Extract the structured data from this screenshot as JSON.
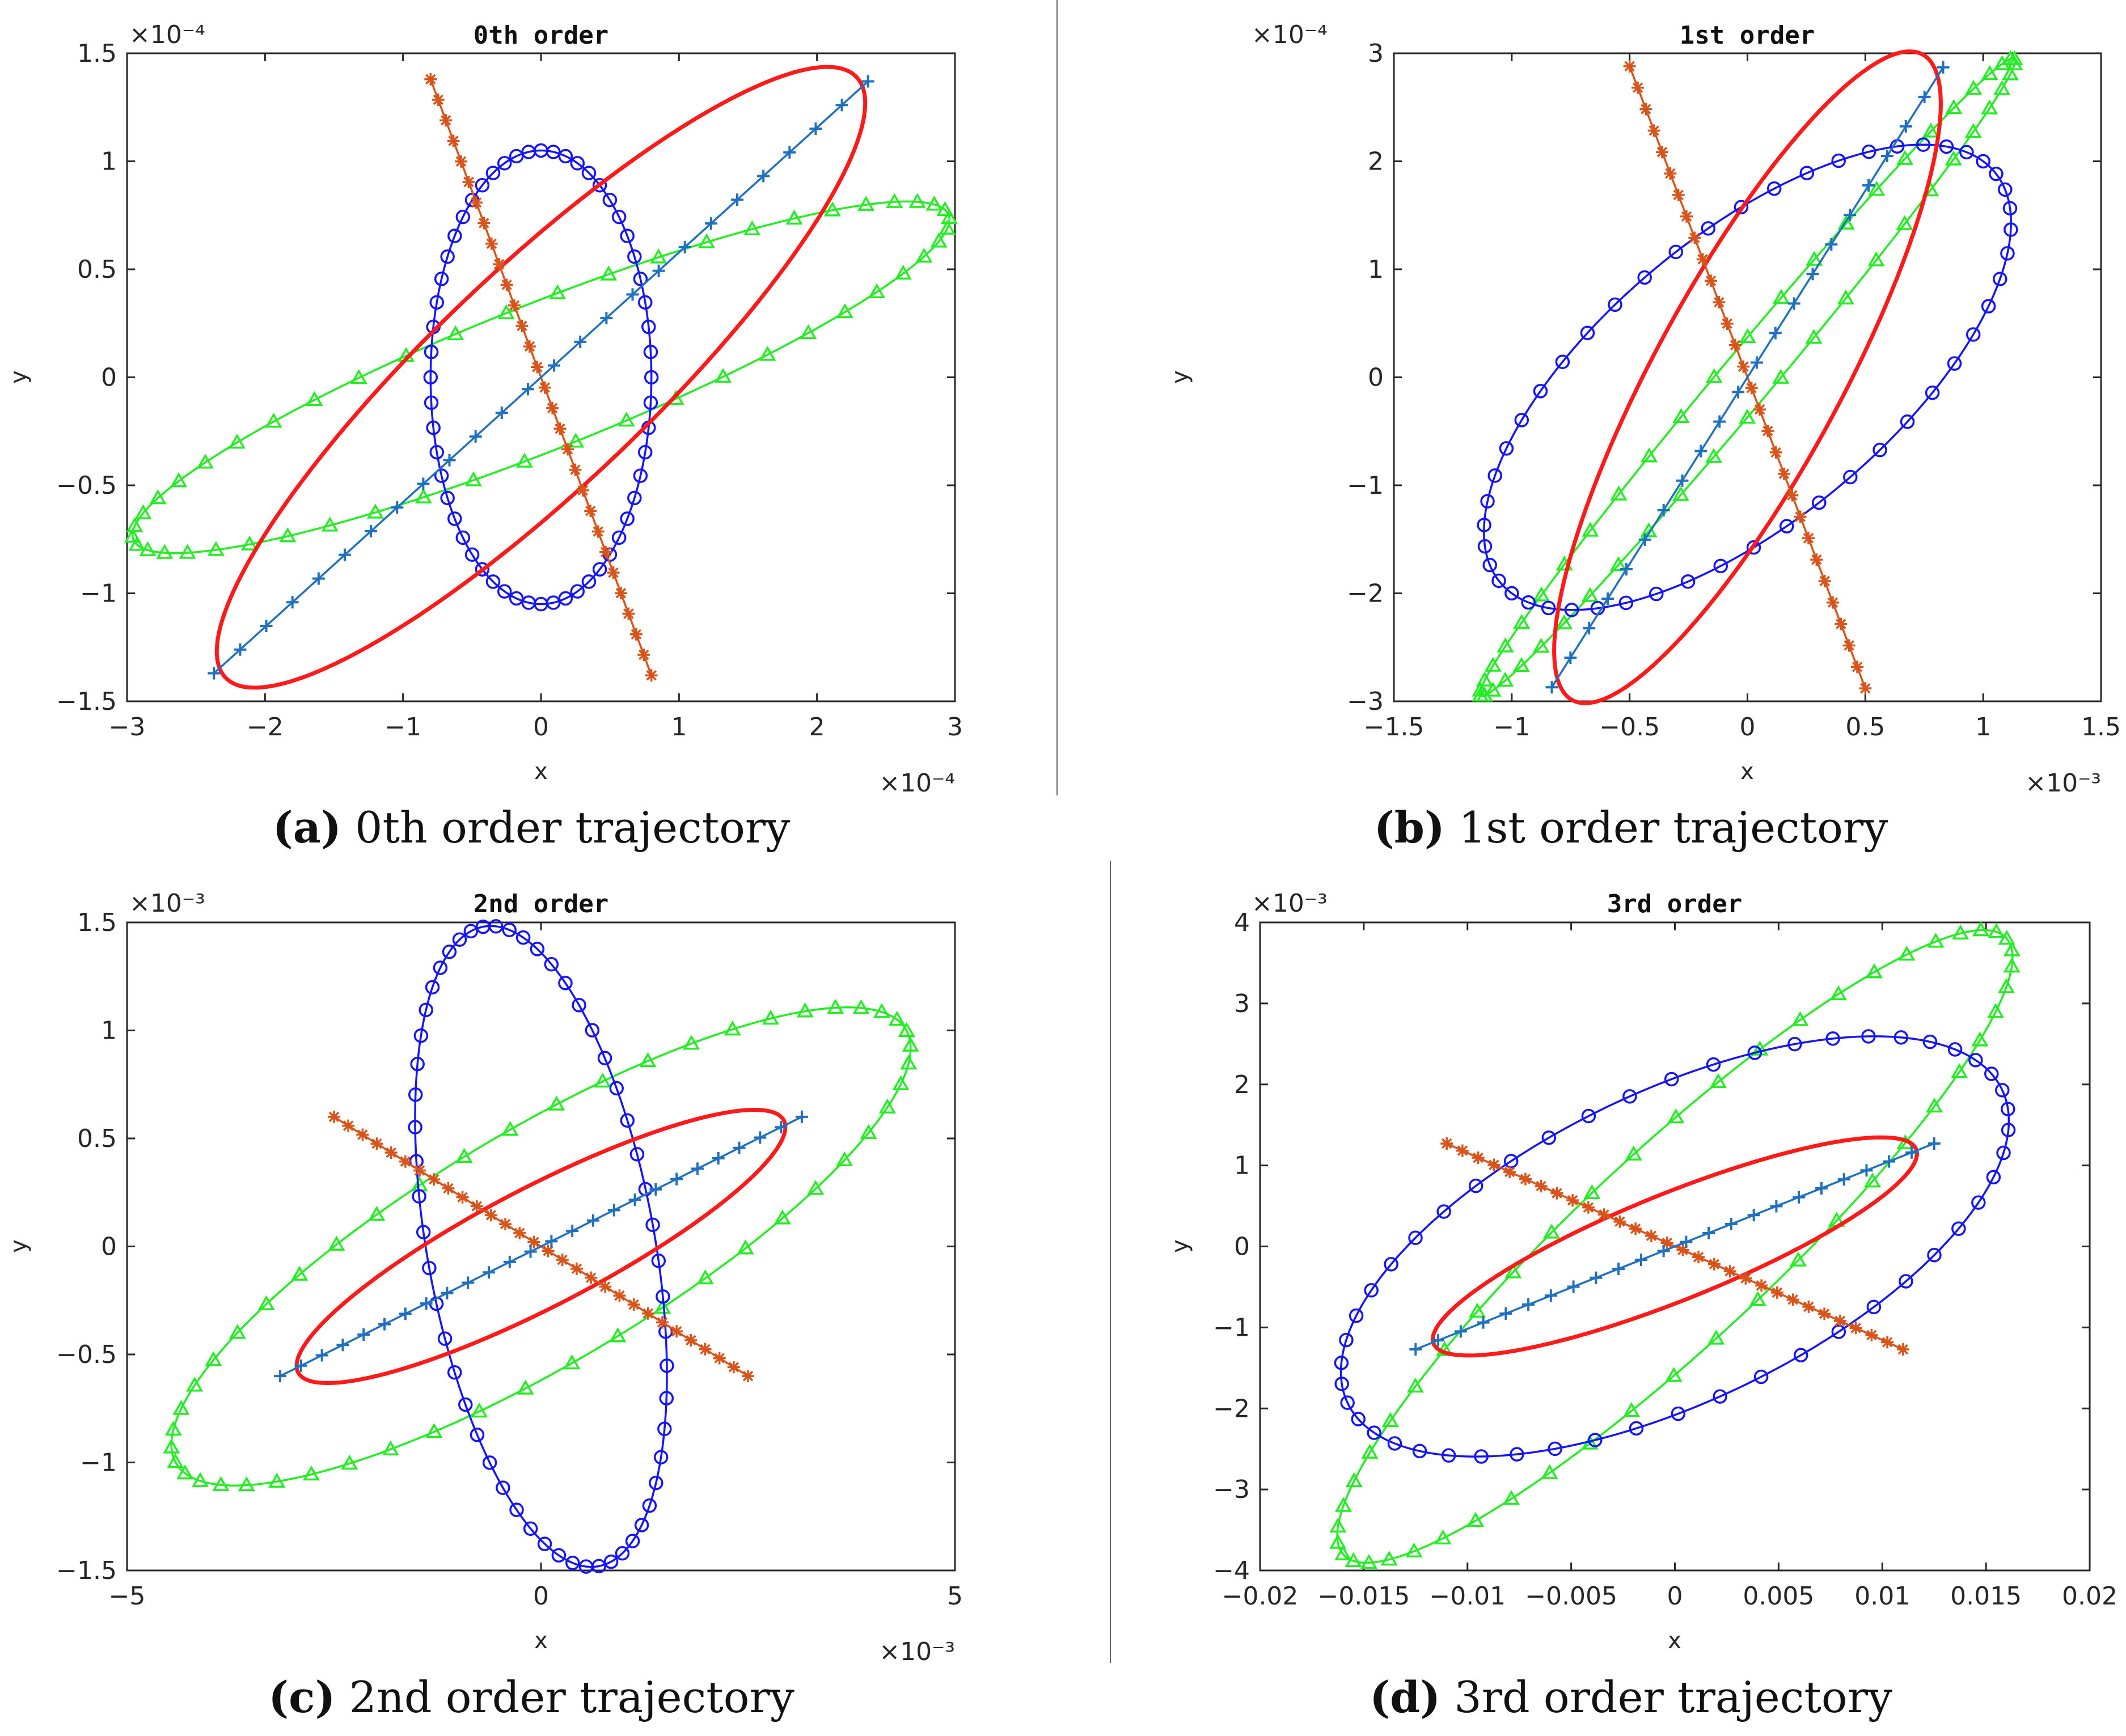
{
  "colors": {
    "red": "#ff1a1a",
    "blue": "#1414ff",
    "green": "#22ee22",
    "orange": "#d9541a",
    "steel": "#1f70c1",
    "axis": "#262626"
  },
  "captions": [
    {
      "label": "(a)",
      "text": "0th order trajectory"
    },
    {
      "label": "(b)",
      "text": "1st order trajectory"
    },
    {
      "label": "(c)",
      "text": "2nd order trajectory"
    },
    {
      "label": "(d)",
      "text": "3rd order trajectory"
    }
  ],
  "chart_data": [
    {
      "type": "line",
      "title": "0th order",
      "xlabel": "x",
      "ylabel": "y",
      "x_exponent": "×10⁻⁴",
      "y_exponent": "×10⁻⁴",
      "xlim": [
        -3,
        3
      ],
      "ylim": [
        -1.5,
        1.5
      ],
      "xticks": [
        -3,
        -2,
        -1,
        0,
        1,
        2,
        3
      ],
      "xtick_labels": [
        "−3",
        "−2",
        "−1",
        "0",
        "1",
        "2",
        "3"
      ],
      "yticks": [
        -1.5,
        -1,
        -0.5,
        0,
        0.5,
        1,
        1.5
      ],
      "ytick_labels": [
        "−1.5",
        "−1",
        "−0.5",
        "0",
        "0.5",
        "1",
        "1.5"
      ],
      "series": [
        {
          "name": "red-ellipse",
          "marker": "none",
          "kind": "ellipse",
          "center": [
            0,
            0
          ],
          "a": [
            2.3,
            1.38
          ],
          "b": [
            -0.48,
            0.4
          ],
          "n": 100
        },
        {
          "name": "blue-circle-ellipse",
          "marker": "o",
          "kind": "ellipse",
          "center": [
            0,
            0
          ],
          "a": [
            0,
            1.05
          ],
          "b": [
            0.8,
            0
          ],
          "n": 56
        },
        {
          "name": "green-triangle-ellipse",
          "marker": "^",
          "kind": "ellipse",
          "center": [
            0,
            0
          ],
          "a": [
            2.85,
            0.8
          ],
          "b": [
            -0.8,
            0.15
          ],
          "n": 50
        },
        {
          "name": "blue-plus-line",
          "marker": "+",
          "kind": "line",
          "start": [
            -2.37,
            -1.37
          ],
          "end": [
            2.37,
            1.37
          ],
          "n": 26
        },
        {
          "name": "orange-star-line",
          "marker": "*",
          "kind": "line",
          "start": [
            -0.8,
            1.38
          ],
          "end": [
            0.8,
            -1.38
          ],
          "n": 30
        }
      ]
    },
    {
      "type": "line",
      "title": "1st order",
      "xlabel": "x",
      "ylabel": "y",
      "x_exponent": "×10⁻³",
      "y_exponent": "×10⁻⁴",
      "xlim": [
        -1.5,
        1.5
      ],
      "ylim": [
        -3,
        3
      ],
      "xticks": [
        -1.5,
        -1,
        -0.5,
        0,
        0.5,
        1,
        1.5
      ],
      "xtick_labels": [
        "−1.5",
        "−1",
        "−0.5",
        "0",
        "0.5",
        "1",
        "1.5"
      ],
      "yticks": [
        -3,
        -2,
        -1,
        0,
        1,
        2,
        3
      ],
      "ytick_labels": [
        "−3",
        "−2",
        "−1",
        "0",
        "1",
        "2",
        "3"
      ],
      "series": [
        {
          "name": "red-ellipse",
          "marker": "none",
          "kind": "ellipse",
          "center": [
            0,
            0
          ],
          "a": [
            0.79,
            2.88
          ],
          "b": [
            -0.22,
            0.9
          ],
          "n": 100
        },
        {
          "name": "blue-circle-ellipse",
          "marker": "o",
          "kind": "ellipse",
          "center": [
            0,
            0
          ],
          "a": [
            1.0,
            2.0
          ],
          "b": [
            -0.5,
            0.8
          ],
          "n": 50
        },
        {
          "name": "green-triangle-ellipse",
          "marker": "^",
          "kind": "ellipse",
          "center": [
            0,
            0
          ],
          "a": [
            1.08,
            2.9
          ],
          "b": [
            -0.35,
            -0.55
          ],
          "n": 50
        },
        {
          "name": "blue-plus-line",
          "marker": "+",
          "kind": "line",
          "start": [
            -0.83,
            -2.87
          ],
          "end": [
            0.83,
            2.87
          ],
          "n": 22
        },
        {
          "name": "orange-star-line",
          "marker": "*",
          "kind": "line",
          "start": [
            -0.5,
            2.88
          ],
          "end": [
            0.5,
            -2.88
          ],
          "n": 30
        }
      ]
    },
    {
      "type": "line",
      "title": "2nd order",
      "xlabel": "x",
      "ylabel": "y",
      "x_exponent": "×10⁻³",
      "y_exponent": "×10⁻³",
      "xlim": [
        -5,
        5
      ],
      "ylim": [
        -1.5,
        1.5
      ],
      "xticks": [
        -5,
        0,
        5
      ],
      "xtick_labels": [
        "−5",
        "0",
        "5"
      ],
      "yticks": [
        -1.5,
        -1,
        -0.5,
        0,
        0.5,
        1,
        1.5
      ],
      "ytick_labels": [
        "−1.5",
        "−1",
        "−0.5",
        "0",
        "0.5",
        "1",
        "1.5"
      ],
      "series": [
        {
          "name": "red-ellipse",
          "marker": "none",
          "kind": "ellipse",
          "center": [
            0,
            0
          ],
          "a": [
            2.9,
            0.6
          ],
          "b": [
            -0.55,
            0.2
          ],
          "n": 100
        },
        {
          "name": "blue-circle-ellipse",
          "marker": "o",
          "kind": "ellipse",
          "center": [
            0,
            0
          ],
          "a": [
            -0.7,
            1.48
          ],
          "b": [
            1.35,
            0.1
          ],
          "n": 56
        },
        {
          "name": "green-triangle-ellipse",
          "marker": "^",
          "kind": "ellipse",
          "center": [
            0,
            0
          ],
          "a": [
            4.3,
            1.05
          ],
          "b": [
            -1.2,
            0.35
          ],
          "n": 50
        },
        {
          "name": "blue-plus-line",
          "marker": "+",
          "kind": "line",
          "start": [
            -3.15,
            -0.6
          ],
          "end": [
            3.15,
            0.6
          ],
          "n": 26
        },
        {
          "name": "orange-star-line",
          "marker": "*",
          "kind": "line",
          "start": [
            -2.5,
            0.6
          ],
          "end": [
            2.5,
            -0.6
          ],
          "n": 30
        }
      ]
    },
    {
      "type": "line",
      "title": "3rd order",
      "xlabel": "x",
      "ylabel": "y",
      "x_exponent": "",
      "y_exponent": "×10⁻³",
      "xlim": [
        -0.02,
        0.02
      ],
      "ylim": [
        -4,
        4
      ],
      "xticks": [
        -0.02,
        -0.015,
        -0.01,
        -0.005,
        0,
        0.005,
        0.01,
        0.015,
        0.02
      ],
      "xtick_labels": [
        "−0.02",
        "−0.015",
        "−0.01",
        "−0.005",
        "0",
        "0.005",
        "0.01",
        "0.015",
        "0.02"
      ],
      "yticks": [
        -4,
        -3,
        -2,
        -1,
        0,
        1,
        2,
        3,
        4
      ],
      "ytick_labels": [
        "−4",
        "−3",
        "−2",
        "−1",
        "0",
        "1",
        "2",
        "3",
        "4"
      ],
      "series": [
        {
          "name": "red-ellipse",
          "marker": "none",
          "kind": "ellipse",
          "center": [
            0,
            0
          ],
          "a": [
            0.0115,
            1.25
          ],
          "b": [
            -0.002,
            0.5
          ],
          "n": 100
        },
        {
          "name": "blue-circle-ellipse",
          "marker": "o",
          "kind": "ellipse",
          "center": [
            0,
            0
          ],
          "a": [
            0.0145,
            2.3
          ],
          "b": [
            -0.007,
            1.2
          ],
          "n": 50
        },
        {
          "name": "green-triangle-ellipse",
          "marker": "^",
          "kind": "ellipse",
          "center": [
            0,
            0
          ],
          "a": [
            0.016,
            3.8
          ],
          "b": [
            -0.003,
            0.9
          ],
          "n": 50
        },
        {
          "name": "blue-plus-line",
          "marker": "+",
          "kind": "line",
          "start": [
            -0.0125,
            -1.27
          ],
          "end": [
            0.0125,
            1.27
          ],
          "n": 24
        },
        {
          "name": "orange-star-line",
          "marker": "*",
          "kind": "line",
          "start": [
            -0.011,
            1.27
          ],
          "end": [
            0.011,
            -1.27
          ],
          "n": 30
        }
      ]
    }
  ]
}
